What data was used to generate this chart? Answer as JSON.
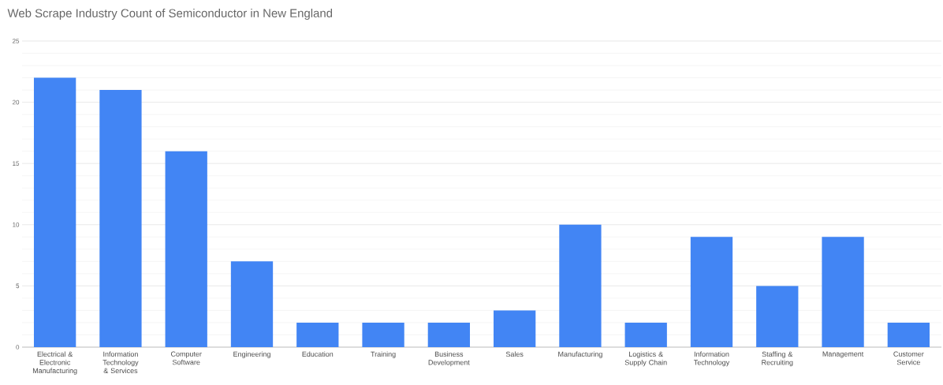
{
  "chart_data": {
    "type": "bar",
    "title": "Web Scrape Industry Count of Semiconductor in New England",
    "categories": [
      "Electrical & Electronic Manufacturing",
      "Information Technology & Services",
      "Computer Software",
      "Engineering",
      "Education",
      "Training",
      "Business Development",
      "Sales",
      "Manufacturing",
      "Logistics & Supply Chain",
      "Information Technology",
      "Staffing & Recruiting",
      "Management",
      "Customer Service"
    ],
    "values": [
      22,
      21,
      16,
      7,
      2,
      2,
      2,
      3,
      10,
      2,
      9,
      5,
      9,
      2
    ],
    "color": "#4285f4",
    "ylim": [
      0,
      25
    ],
    "yticks": [
      0,
      5,
      10,
      15,
      20,
      25
    ],
    "grid": "y"
  }
}
